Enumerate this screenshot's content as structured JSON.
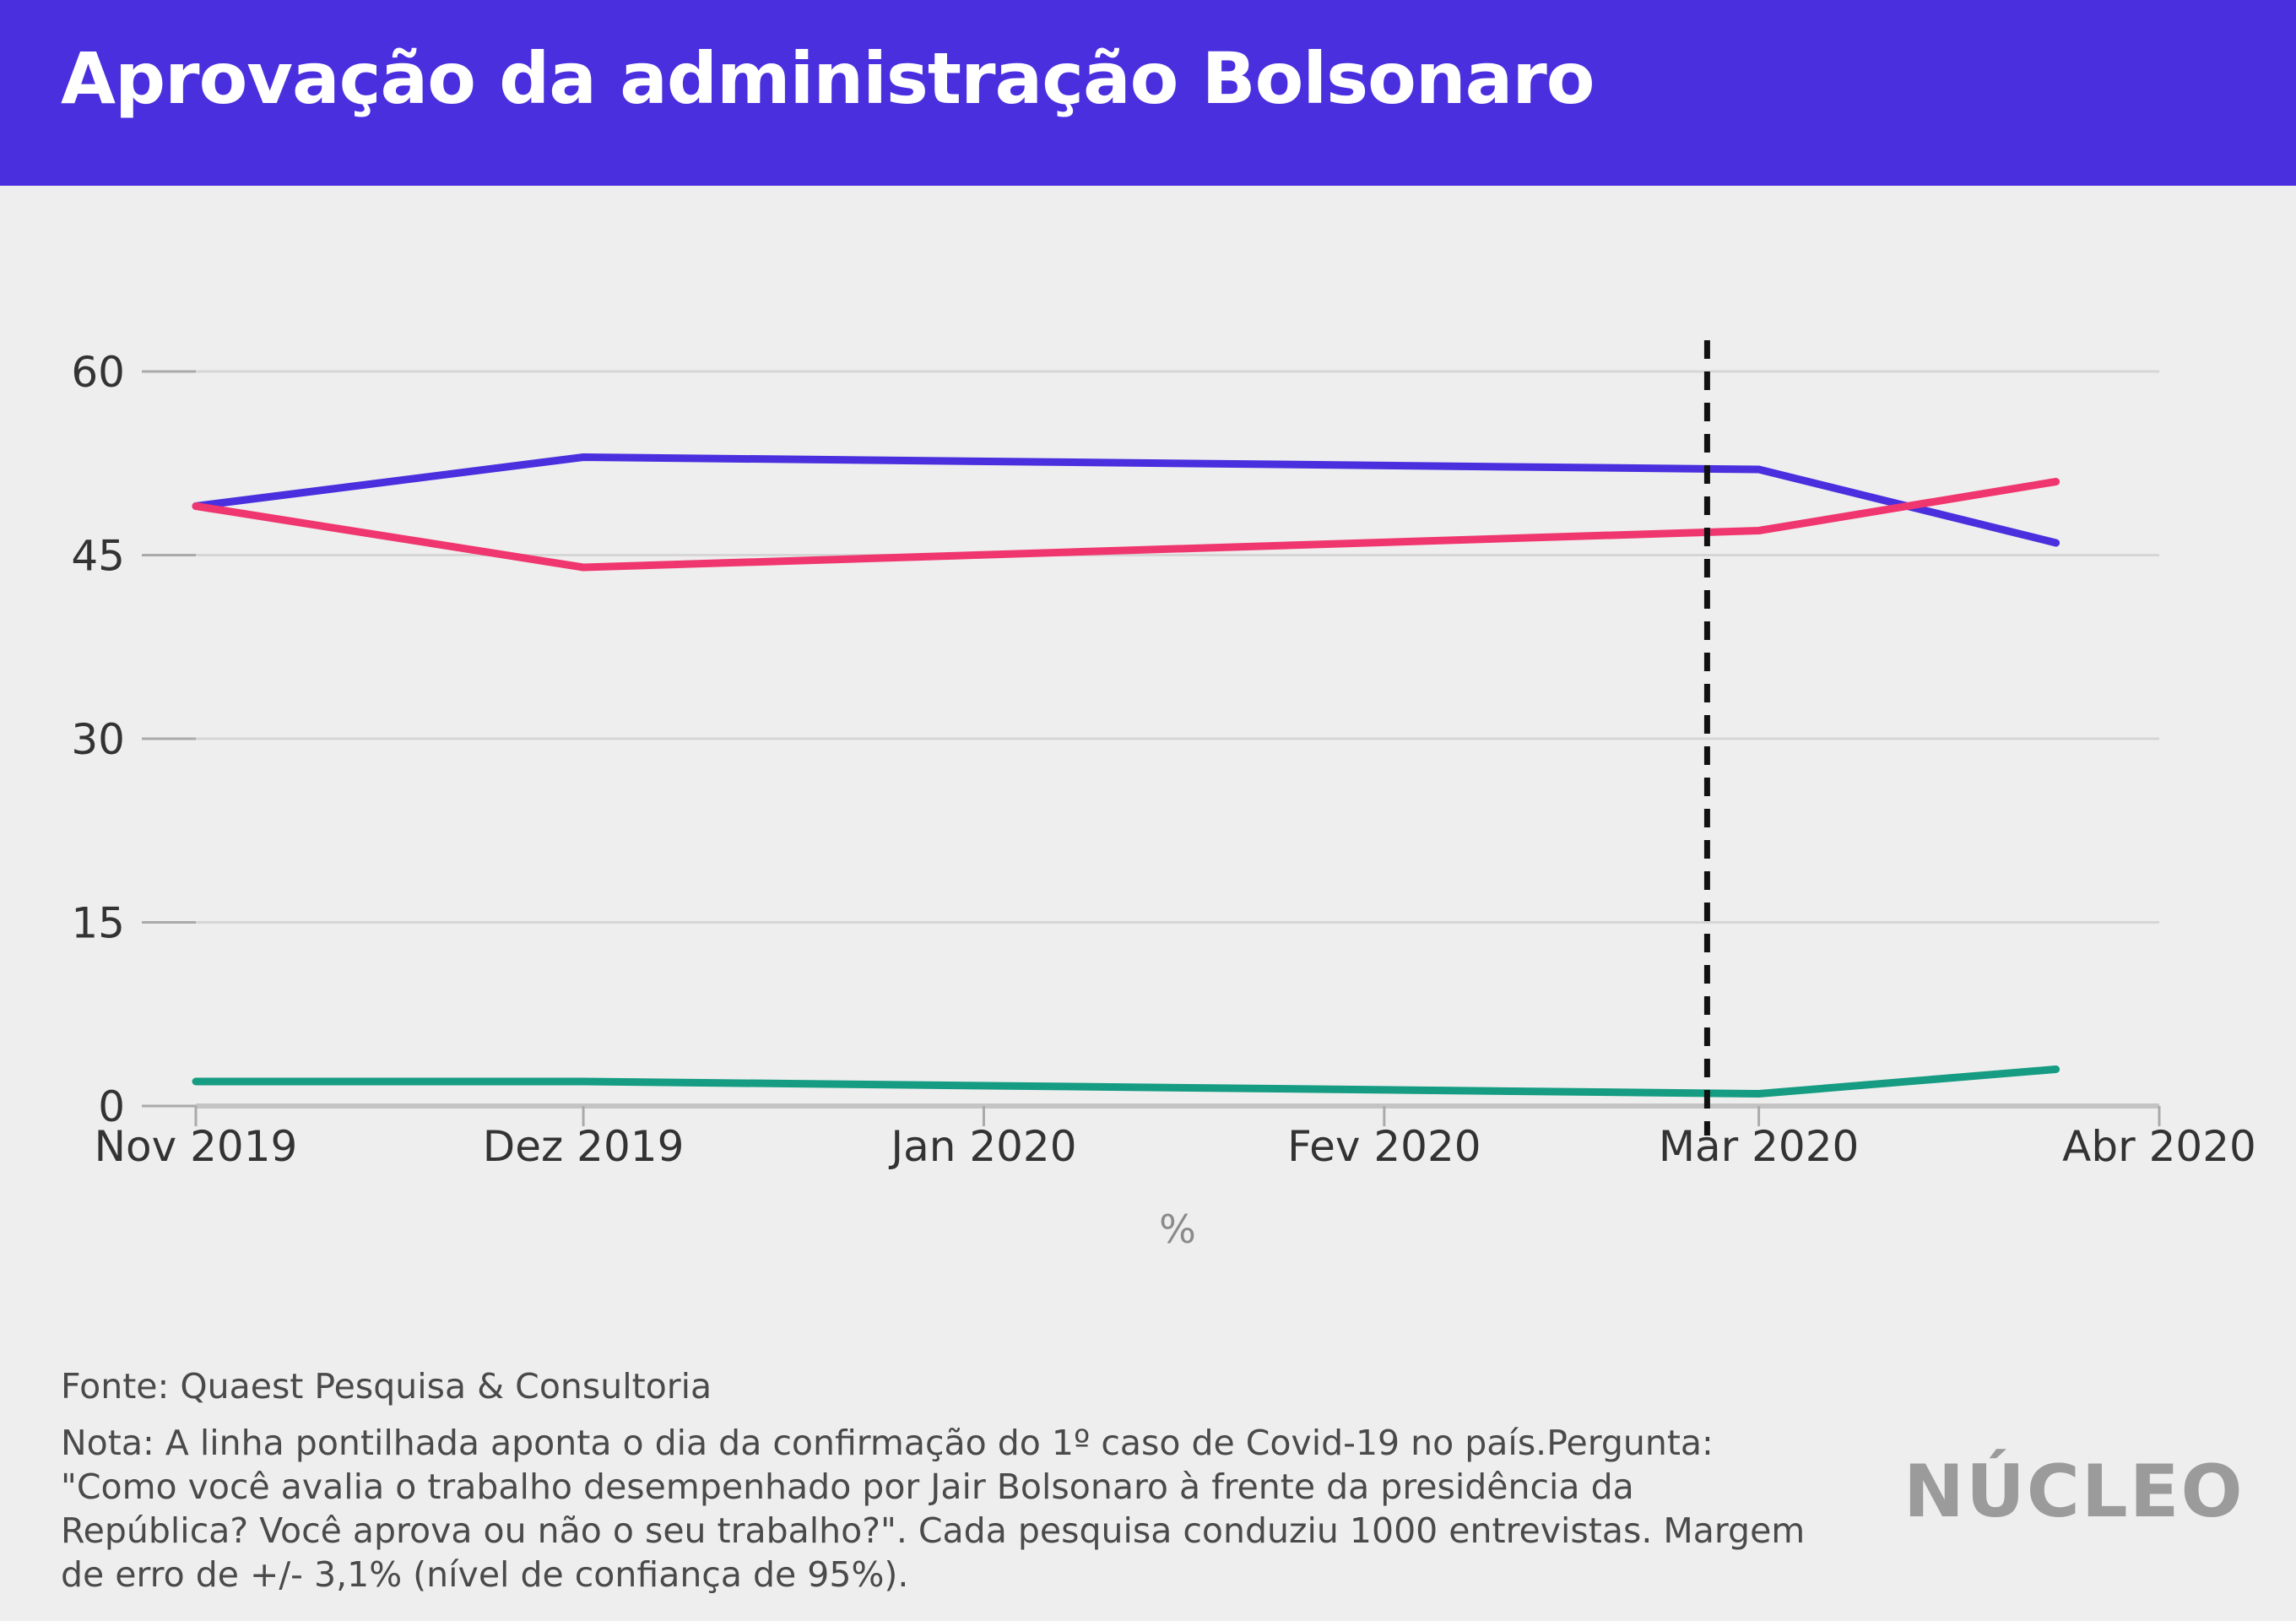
{
  "header": {
    "title": "Aprovação da administração Bolsonaro"
  },
  "colors": {
    "header_bg": "#4a2fdf",
    "grid": "#d6d6d6",
    "tick_text": "#333333",
    "marker": "#111111"
  },
  "chart_data": {
    "type": "line",
    "title": "Aprovação da administração Bolsonaro",
    "xlabel": "%",
    "ylabel": "",
    "ylim": [
      0,
      60
    ],
    "yticks": [
      "0",
      "15",
      "30",
      "45",
      "60"
    ],
    "xticks": [
      "Nov 2019",
      "Dez 2019",
      "Jan 2020",
      "Fev 2020",
      "Mar 2020",
      "Abr 2020"
    ],
    "xlim": [
      "2019-11-01",
      "2020-04-01"
    ],
    "grid": true,
    "legend": "none",
    "series": [
      {
        "color": "#4a2fdf",
        "points": [
          {
            "x": "2019-11-01",
            "y": 49
          },
          {
            "x": "2019-12-01",
            "y": 53
          },
          {
            "x": "2020-03-01",
            "y": 52
          },
          {
            "x": "2020-03-24",
            "y": 46
          }
        ]
      },
      {
        "color": "#f0366e",
        "points": [
          {
            "x": "2019-11-01",
            "y": 49
          },
          {
            "x": "2019-12-01",
            "y": 44
          },
          {
            "x": "2020-03-01",
            "y": 47
          },
          {
            "x": "2020-03-24",
            "y": 51
          }
        ]
      },
      {
        "color": "#159c82",
        "points": [
          {
            "x": "2019-11-01",
            "y": 2
          },
          {
            "x": "2019-12-01",
            "y": 2
          },
          {
            "x": "2020-03-01",
            "y": 1
          },
          {
            "x": "2020-03-24",
            "y": 3
          }
        ]
      }
    ],
    "annotations": [
      {
        "type": "vertical-dashed-line",
        "x": "2020-02-26"
      }
    ]
  },
  "footer": {
    "source": "Fonte: Quaest Pesquisa & Consultoria",
    "note": "Nota: A linha pontilhada aponta o dia da confirmação do 1º caso de Covid-19 no país.Pergunta: \"Como você avalia o trabalho desempenhado por Jair Bolsonaro à frente da presidência da República? Você aprova ou não o seu trabalho?\". Cada pesquisa conduziu 1000 entrevistas. Margem de erro de +/-  3,1% (nível de confiança de 95%).",
    "logo": "NÚCLEO"
  }
}
